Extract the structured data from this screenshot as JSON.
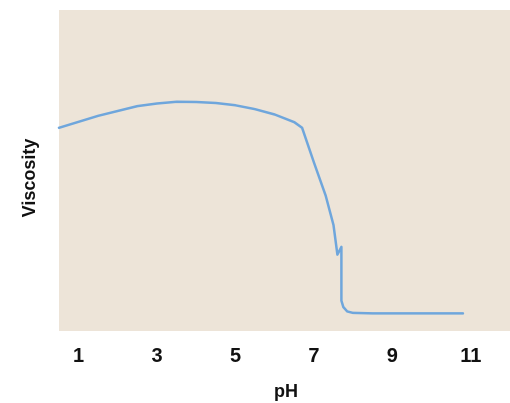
{
  "chart_data": {
    "type": "line",
    "title": "",
    "xlabel": "pH",
    "ylabel": "Viscosity",
    "xlim": [
      0.5,
      12
    ],
    "ylim": [
      0,
      1
    ],
    "x_ticks": [
      1,
      3,
      5,
      7,
      9,
      11
    ],
    "y_ticks": [],
    "grid": false,
    "legend": "none",
    "colors": {
      "plot_background": "#ede4d8",
      "line": "#6fa6dc",
      "text": "#111111"
    },
    "series": [
      {
        "x": [
          0.5,
          1.5,
          2.5,
          3.0,
          3.5,
          4.0,
          4.5,
          5.0,
          5.5,
          6.0,
          6.5,
          6.7,
          7.0,
          7.3,
          7.5,
          7.6,
          7.7,
          7.7,
          7.75,
          7.85,
          8.0,
          8.5,
          9.5,
          10.5,
          10.8
        ],
        "y": [
          0.735,
          0.782,
          0.82,
          0.83,
          0.837,
          0.836,
          0.832,
          0.823,
          0.808,
          0.787,
          0.757,
          0.735,
          0.6,
          0.47,
          0.355,
          0.24,
          0.27,
          0.06,
          0.035,
          0.018,
          0.012,
          0.01,
          0.01,
          0.01,
          0.01
        ]
      }
    ]
  }
}
